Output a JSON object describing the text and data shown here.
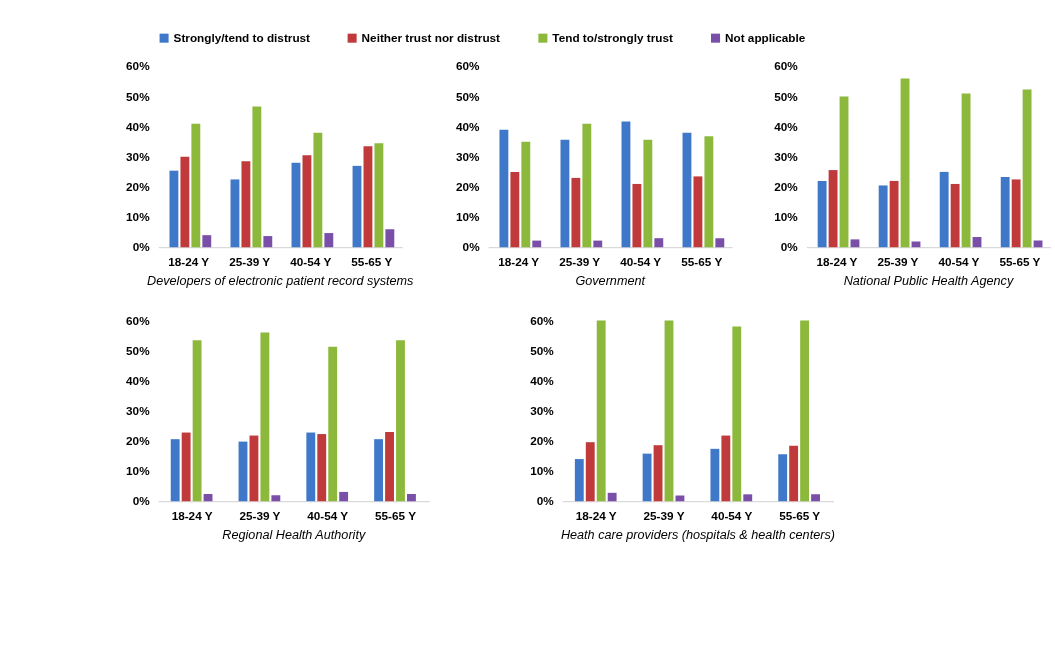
{
  "chart_data": [
    {
      "type": "bar",
      "title": "Developers of electronic patient record systems",
      "categories": [
        "18-24 Y",
        "25-39 Y",
        "40-54 Y",
        "55-65 Y"
      ],
      "ylim": [
        0,
        60
      ],
      "yticks": [
        {
          "value": 0,
          "label": "0%"
        },
        {
          "value": 10,
          "label": "10%"
        },
        {
          "value": 20,
          "label": "20%"
        },
        {
          "value": 30,
          "label": "30%"
        },
        {
          "value": 40,
          "label": "40%"
        },
        {
          "value": 50,
          "label": "50%"
        },
        {
          "value": 60,
          "label": "60%"
        }
      ],
      "grid": false,
      "legend": "top",
      "series": [
        {
          "name": "Strongly/tend to distrust",
          "color": "#3f78c8",
          "values": [
            25.4,
            22.5,
            28,
            27
          ]
        },
        {
          "name": "Neither trust nor distrust",
          "color": "#c0393b",
          "values": [
            30,
            28.5,
            30.5,
            33.5
          ]
        },
        {
          "name": "Tend to/strongly trust",
          "color": "#8cb83c",
          "values": [
            41,
            46.7,
            38,
            34.5
          ]
        },
        {
          "name": "Not applicable",
          "color": "#7a4fa8",
          "values": [
            4,
            3.7,
            4.7,
            6
          ]
        }
      ]
    },
    {
      "type": "bar",
      "title": "Government",
      "categories": [
        "18-24 Y",
        "25-39 Y",
        "40-54 Y",
        "55-65 Y"
      ],
      "ylim": [
        0,
        60
      ],
      "yticks": [
        {
          "value": 0,
          "label": "0%"
        },
        {
          "value": 10,
          "label": "10%"
        },
        {
          "value": 20,
          "label": "20%"
        },
        {
          "value": 30,
          "label": "30%"
        },
        {
          "value": 40,
          "label": "40%"
        },
        {
          "value": 50,
          "label": "50%"
        },
        {
          "value": 60,
          "label": "60%"
        }
      ],
      "grid": false,
      "legend": "top",
      "series": [
        {
          "name": "Strongly/tend to distrust",
          "color": "#3f78c8",
          "values": [
            39,
            35.7,
            41.7,
            38
          ]
        },
        {
          "name": "Neither trust nor distrust",
          "color": "#c0393b",
          "values": [
            25,
            23,
            21,
            23.5
          ]
        },
        {
          "name": "Tend to/strongly trust",
          "color": "#8cb83c",
          "values": [
            35,
            41,
            35.7,
            36.8
          ]
        },
        {
          "name": "Not applicable",
          "color": "#7a4fa8",
          "values": [
            2.2,
            2.2,
            3,
            3
          ]
        }
      ]
    },
    {
      "type": "bar",
      "title": "National Public Health Agency",
      "categories": [
        "18-24 Y",
        "25-39 Y",
        "40-54 Y",
        "55-65 Y"
      ],
      "ylim": [
        0,
        60
      ],
      "yticks": [
        {
          "value": 0,
          "label": "0%"
        },
        {
          "value": 10,
          "label": "10%"
        },
        {
          "value": 20,
          "label": "20%"
        },
        {
          "value": 30,
          "label": "30%"
        },
        {
          "value": 40,
          "label": "40%"
        },
        {
          "value": 50,
          "label": "50%"
        },
        {
          "value": 60,
          "label": "60%"
        }
      ],
      "grid": false,
      "legend": "top",
      "series": [
        {
          "name": "Strongly/tend to distrust",
          "color": "#3f78c8",
          "values": [
            22,
            20.5,
            25,
            23.3
          ]
        },
        {
          "name": "Neither trust nor distrust",
          "color": "#c0393b",
          "values": [
            25.6,
            22,
            21,
            22.5
          ]
        },
        {
          "name": "Tend to/strongly trust",
          "color": "#8cb83c",
          "values": [
            50,
            56,
            51,
            52.3
          ]
        },
        {
          "name": "Not applicable",
          "color": "#7a4fa8",
          "values": [
            2.6,
            1.9,
            3.4,
            2.2
          ]
        }
      ]
    },
    {
      "type": "bar",
      "title": "Regional Health Authority",
      "categories": [
        "18-24 Y",
        "25-39 Y",
        "40-54 Y",
        "55-65 Y"
      ],
      "ylim": [
        0,
        60
      ],
      "yticks": [
        {
          "value": 0,
          "label": "0%"
        },
        {
          "value": 10,
          "label": "10%"
        },
        {
          "value": 20,
          "label": "20%"
        },
        {
          "value": 30,
          "label": "30%"
        },
        {
          "value": 40,
          "label": "40%"
        },
        {
          "value": 50,
          "label": "50%"
        },
        {
          "value": 60,
          "label": "60%"
        }
      ],
      "grid": false,
      "legend": "top",
      "series": [
        {
          "name": "Strongly/tend to distrust",
          "color": "#3f78c8",
          "values": [
            20.6,
            19.8,
            22.8,
            20.6
          ]
        },
        {
          "name": "Neither trust nor distrust",
          "color": "#c0393b",
          "values": [
            22.8,
            21.8,
            22.3,
            23
          ]
        },
        {
          "name": "Tend to/strongly trust",
          "color": "#8cb83c",
          "values": [
            53.4,
            56,
            51.3,
            53.4
          ]
        },
        {
          "name": "Not applicable",
          "color": "#7a4fa8",
          "values": [
            2.4,
            2,
            3.1,
            2.4
          ]
        }
      ]
    },
    {
      "type": "bar",
      "title": "Heath care providers (hospitals & health centers)",
      "categories": [
        "18-24 Y",
        "25-39 Y",
        "40-54 Y",
        "55-65 Y"
      ],
      "ylim": [
        0,
        60
      ],
      "yticks": [
        {
          "value": 0,
          "label": "0%"
        },
        {
          "value": 10,
          "label": "10%"
        },
        {
          "value": 20,
          "label": "20%"
        },
        {
          "value": 30,
          "label": "30%"
        },
        {
          "value": 40,
          "label": "40%"
        },
        {
          "value": 50,
          "label": "50%"
        },
        {
          "value": 60,
          "label": "60%"
        }
      ],
      "grid": false,
      "legend": "top",
      "series": [
        {
          "name": "Strongly/tend to distrust",
          "color": "#3f78c8",
          "values": [
            14,
            15.8,
            17.4,
            15.6
          ]
        },
        {
          "name": "Neither trust nor distrust",
          "color": "#c0393b",
          "values": [
            19.6,
            18.6,
            21.8,
            18.4
          ]
        },
        {
          "name": "Tend to/strongly trust",
          "color": "#8cb83c",
          "values": [
            60,
            60,
            58,
            60
          ]
        },
        {
          "name": "Not applicable",
          "color": "#7a4fa8",
          "values": [
            2.8,
            1.9,
            2.3,
            2.3
          ]
        }
      ]
    }
  ]
}
